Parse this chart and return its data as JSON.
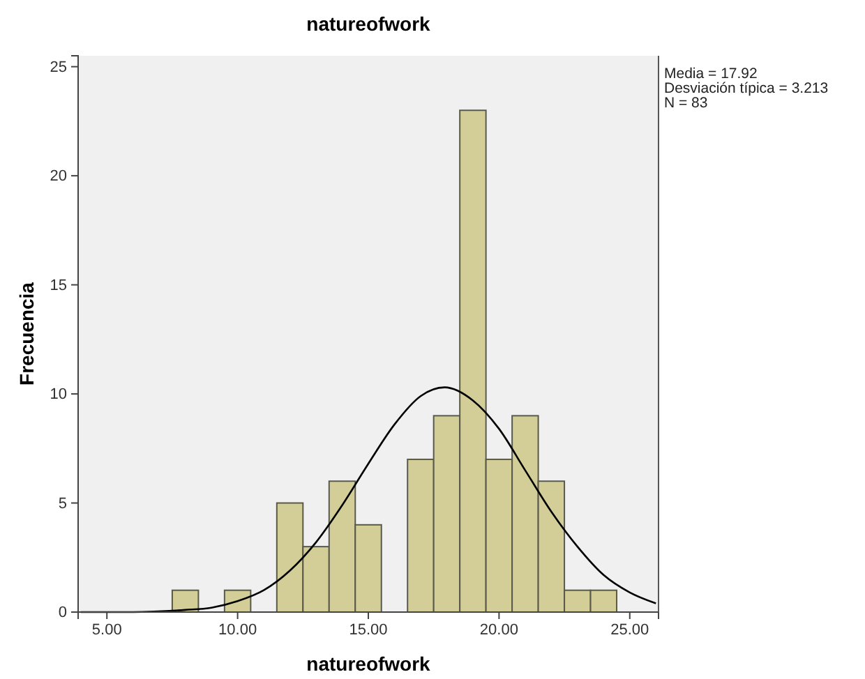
{
  "chart_data": {
    "type": "histogram",
    "title": "natureofwork",
    "xlabel": "natureofwork",
    "ylabel": "Frecuencia",
    "bins": [
      7.5,
      8.5,
      9.5,
      10.5,
      11.5,
      12.5,
      13.5,
      14.5,
      15.5,
      16.5,
      17.5,
      18.5,
      19.5,
      20.5,
      21.5,
      22.5,
      23.5,
      24.5
    ],
    "values": [
      1,
      0,
      1,
      0,
      5,
      3,
      6,
      4,
      0,
      7,
      9,
      23,
      7,
      9,
      6,
      1,
      1
    ],
    "color": "#d3ce97",
    "series": [
      {
        "type": "line",
        "color": "#000000",
        "x": [
          4,
          6,
          8,
          9,
          10,
          11,
          12,
          13,
          14,
          15,
          16,
          17,
          17.92,
          19,
          20,
          21,
          22,
          23,
          24,
          25,
          26
        ],
        "values": [
          0,
          0,
          0.1,
          0.2,
          0.5,
          1,
          1.9,
          3.2,
          4.9,
          6.8,
          8.6,
          9.9,
          10.3,
          9.7,
          8.4,
          6.5,
          4.6,
          3,
          1.7,
          0.9,
          0.4
        ]
      }
    ],
    "xlim": [
      3.9,
      26.1
    ],
    "ylim": [
      0,
      25.5
    ],
    "xticks": [
      {
        "value": 5,
        "label": "5.00"
      },
      {
        "value": 10,
        "label": "10.00"
      },
      {
        "value": 15,
        "label": "15.00"
      },
      {
        "value": 20,
        "label": "20.00"
      },
      {
        "value": 25,
        "label": "25.00"
      }
    ],
    "yticks": [
      0,
      5,
      10,
      15,
      20,
      25
    ],
    "grid": false,
    "annotations": [
      "Media = 17.92",
      "Desviación típica = 3.213",
      "N = 83"
    ]
  }
}
